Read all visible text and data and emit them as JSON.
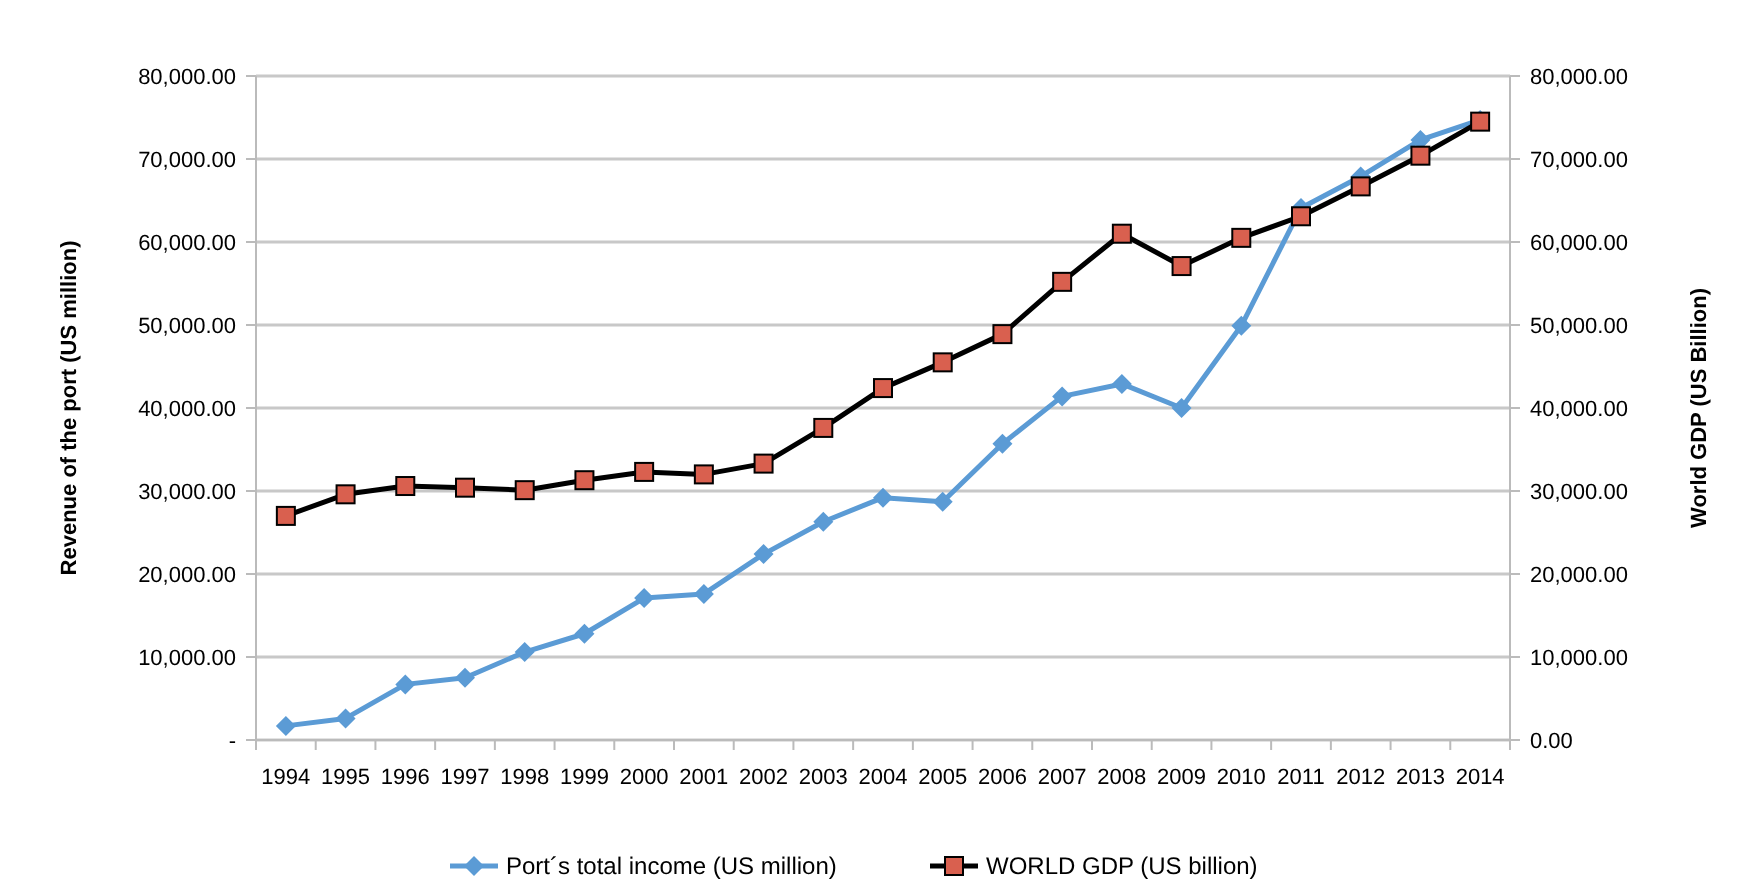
{
  "chart_data": {
    "type": "line",
    "categories": [
      "1994",
      "1995",
      "1996",
      "1997",
      "1998",
      "1999",
      "2000",
      "2001",
      "2002",
      "2003",
      "2004",
      "2005",
      "2006",
      "2007",
      "2008",
      "2009",
      "2010",
      "2011",
      "2012",
      "2013",
      "2014"
    ],
    "series": [
      {
        "name": "Port´s total income  (US million)",
        "color": "#5b9bd5",
        "marker": "diamond",
        "values": [
          1700,
          2600,
          6700,
          7500,
          10600,
          12800,
          17100,
          17600,
          22400,
          26300,
          29200,
          28700,
          35700,
          41400,
          42900,
          40000,
          49900,
          64100,
          67900,
          72300,
          74700
        ]
      },
      {
        "name": "WORLD GDP (US billion)",
        "color": "#000000",
        "marker": "square",
        "colors": [
          "#d9604f",
          "#d9604f",
          "#d9604f",
          "#d9604f",
          "#d9604f",
          "#d9604f",
          "#d9604f",
          "#d9604f",
          "#d9604f",
          "#d9604f",
          "#d9604f",
          "#d9604f",
          "#d9604f",
          "#d9604f",
          "#d9604f",
          "#d9604f",
          "#d9604f",
          "#d9604f",
          "#d9604f",
          "#d9604f",
          "#d9604f"
        ],
        "axis": "y2",
        "values": [
          27000,
          29600,
          30600,
          30400,
          30100,
          31300,
          32300,
          32000,
          33300,
          37600,
          42400,
          45500,
          48900,
          55200,
          61000,
          57100,
          60500,
          63100,
          66700,
          70400,
          74500
        ]
      }
    ],
    "ylabel": "Revenue of the port (US million)",
    "y2label": "World GDP (US Billion)",
    "ylim": [
      0,
      80000
    ],
    "yticks": [
      {
        "value": 0,
        "label": "-"
      },
      {
        "value": 10000,
        "label": "10,000.00"
      },
      {
        "value": 20000,
        "label": "20,000.00"
      },
      {
        "value": 30000,
        "label": "30,000.00"
      },
      {
        "value": 40000,
        "label": "40,000.00"
      },
      {
        "value": 50000,
        "label": "50,000.00"
      },
      {
        "value": 60000,
        "label": "60,000.00"
      },
      {
        "value": 70000,
        "label": "70,000.00"
      },
      {
        "value": 80000,
        "label": "80,000.00"
      }
    ],
    "y2lim": [
      0,
      80000
    ],
    "y2ticks": [
      {
        "value": 0,
        "label": "0.00"
      },
      {
        "value": 10000,
        "label": "10,000.00"
      },
      {
        "value": 20000,
        "label": "20,000.00"
      },
      {
        "value": 30000,
        "label": "30,000.00"
      },
      {
        "value": 40000,
        "label": "40,000.00"
      },
      {
        "value": 50000,
        "label": "50,000.00"
      },
      {
        "value": 60000,
        "label": "60,000.00"
      },
      {
        "value": 70000,
        "label": "70,000.00"
      },
      {
        "value": 80000,
        "label": "80,000.00"
      }
    ],
    "grid": "y",
    "legend": "bottom",
    "line_style": "solid"
  }
}
